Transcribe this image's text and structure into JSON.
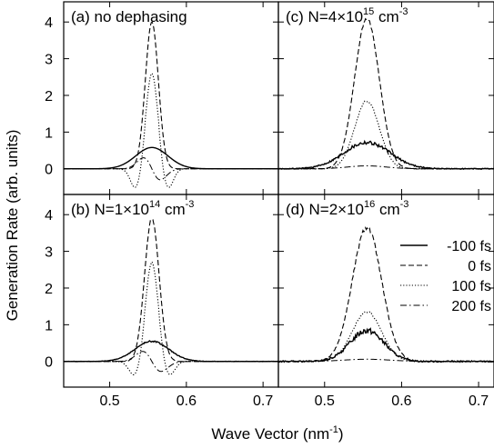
{
  "figure": {
    "ylabel": "Generation Rate (arb. units)",
    "xlabel_main": "Wave Vector (nm",
    "xlabel_sup": "-1",
    "xlabel_end": ")"
  },
  "legend": {
    "placement": "right, inside panel (d)",
    "entries": [
      {
        "label": "-100 fs",
        "dash": "solid"
      },
      {
        "label": "0 fs",
        "dash": "dashed"
      },
      {
        "label": "100 fs",
        "dash": "dotted"
      },
      {
        "label": "200 fs",
        "dash": "dash-dot"
      }
    ]
  },
  "chart_data": [
    {
      "type": "line",
      "panel": "a",
      "title_parts": [
        "(a) no dephasing"
      ],
      "xlim": [
        0.44,
        0.72
      ],
      "ylim": [
        -0.7,
        4.55
      ],
      "xticks": [
        0.5,
        0.6,
        0.7
      ],
      "yticks": [
        0,
        1,
        2,
        3,
        4
      ],
      "series": [
        {
          "name": "-100 fs",
          "dash": "solid",
          "kind": "peak",
          "A": 0.58,
          "sigma": 0.021,
          "wiggle": 0
        },
        {
          "name": "0 fs",
          "dash": "dashed",
          "kind": "peak",
          "A": 4.0,
          "sigma": 0.0085,
          "wiggle": 0
        },
        {
          "name": "100 fs",
          "dash": "dotted",
          "kind": "peak_side",
          "A": 2.6,
          "sigma": 0.0075,
          "side": 0.55,
          "wiggle": 0
        },
        {
          "name": "200 fs",
          "dash": "dash-dot",
          "kind": "oscillation",
          "A": 0.55,
          "sigma": 0.011,
          "wiggle": 0
        }
      ]
    },
    {
      "type": "line",
      "panel": "c",
      "title_parts": [
        "(c) N=4×10",
        "15",
        " cm",
        "-3"
      ],
      "xlim": [
        0.44,
        0.72
      ],
      "ylim": [
        -0.7,
        4.55
      ],
      "xticks": [
        0.5,
        0.6,
        0.7
      ],
      "yticks": [
        0,
        1,
        2,
        3,
        4
      ],
      "series": [
        {
          "name": "-100 fs",
          "dash": "solid",
          "kind": "peak",
          "A": 0.72,
          "sigma": 0.03,
          "wiggle": 0.08
        },
        {
          "name": "0 fs",
          "dash": "dashed",
          "kind": "peak",
          "A": 4.1,
          "sigma": 0.016,
          "wiggle": 0.05
        },
        {
          "name": "100 fs",
          "dash": "dotted",
          "kind": "peak",
          "A": 1.85,
          "sigma": 0.016,
          "wiggle": 0.04
        },
        {
          "name": "200 fs",
          "dash": "dash-dot",
          "kind": "peak",
          "A": 0.08,
          "sigma": 0.025,
          "wiggle": 0
        }
      ]
    },
    {
      "type": "line",
      "panel": "b",
      "title_parts": [
        "(b) N=1×10",
        "14",
        " cm",
        "-3"
      ],
      "xlim": [
        0.44,
        0.72
      ],
      "ylim": [
        -0.7,
        4.55
      ],
      "xticks": [
        0.5,
        0.6,
        0.7
      ],
      "yticks": [
        0,
        1,
        2,
        3,
        4
      ],
      "series": [
        {
          "name": "-100 fs",
          "dash": "solid",
          "kind": "peak",
          "A": 0.55,
          "sigma": 0.022,
          "wiggle": 0.03
        },
        {
          "name": "0 fs",
          "dash": "dashed",
          "kind": "peak",
          "A": 3.9,
          "sigma": 0.0095,
          "wiggle": 0.04
        },
        {
          "name": "100 fs",
          "dash": "dotted",
          "kind": "peak_side",
          "A": 2.7,
          "sigma": 0.008,
          "side": 0.4,
          "wiggle": 0.03
        },
        {
          "name": "200 fs",
          "dash": "dash-dot",
          "kind": "oscillation",
          "A": 0.5,
          "sigma": 0.012,
          "wiggle": 0
        }
      ]
    },
    {
      "type": "line",
      "panel": "d",
      "title_parts": [
        "(d) N=2×10",
        "16",
        " cm",
        "-3"
      ],
      "xlim": [
        0.44,
        0.72
      ],
      "ylim": [
        -0.7,
        4.55
      ],
      "xticks": [
        0.5,
        0.6,
        0.7
      ],
      "yticks": [
        0,
        1,
        2,
        3,
        4
      ],
      "series": [
        {
          "name": "-100 fs",
          "dash": "solid",
          "kind": "peak",
          "A": 0.85,
          "sigma": 0.022,
          "wiggle": 0.12
        },
        {
          "name": "0 fs",
          "dash": "dashed",
          "kind": "peak",
          "A": 3.65,
          "sigma": 0.019,
          "wiggle": 0.1
        },
        {
          "name": "100 fs",
          "dash": "dotted",
          "kind": "peak",
          "A": 1.35,
          "sigma": 0.019,
          "wiggle": 0.04
        },
        {
          "name": "200 fs",
          "dash": "dash-dot",
          "kind": "peak",
          "A": 0.06,
          "sigma": 0.03,
          "wiggle": 0
        }
      ]
    }
  ]
}
